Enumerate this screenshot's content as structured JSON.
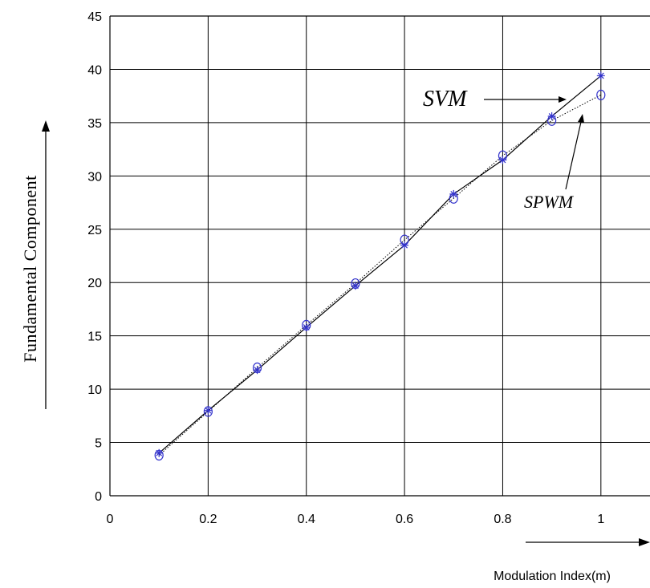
{
  "chart_data": {
    "type": "line",
    "xlabel": "Modulation Index(m)",
    "ylabel": "Fundamental Component",
    "xlim": [
      0,
      1.1
    ],
    "ylim": [
      0,
      45
    ],
    "xticks": [
      "0",
      "0.2",
      "0.4",
      "0.6",
      "0.8",
      "1"
    ],
    "yticks": [
      "0",
      "5",
      "10",
      "15",
      "20",
      "25",
      "30",
      "35",
      "40",
      "45"
    ],
    "grid": true,
    "series": [
      {
        "name": "SVM",
        "marker": "star",
        "line": "solid",
        "x": [
          0.1,
          0.2,
          0.3,
          0.4,
          0.5,
          0.6,
          0.7,
          0.8,
          0.9,
          1.0
        ],
        "y": [
          4.0,
          8.0,
          11.8,
          15.8,
          19.7,
          23.5,
          28.3,
          31.5,
          35.6,
          39.4
        ]
      },
      {
        "name": "SPWM",
        "marker": "circle",
        "line": "dotted",
        "x": [
          0.1,
          0.2,
          0.3,
          0.4,
          0.5,
          0.6,
          0.7,
          0.8,
          0.9,
          1.0
        ],
        "y": [
          3.8,
          7.9,
          12.0,
          16.0,
          19.9,
          24.0,
          27.9,
          31.9,
          35.2,
          37.6
        ]
      }
    ],
    "annotations": [
      "SVM",
      "SPWM"
    ],
    "colors": {
      "line": "#000000",
      "marker": "#3333cc",
      "grid": "#000000"
    }
  }
}
